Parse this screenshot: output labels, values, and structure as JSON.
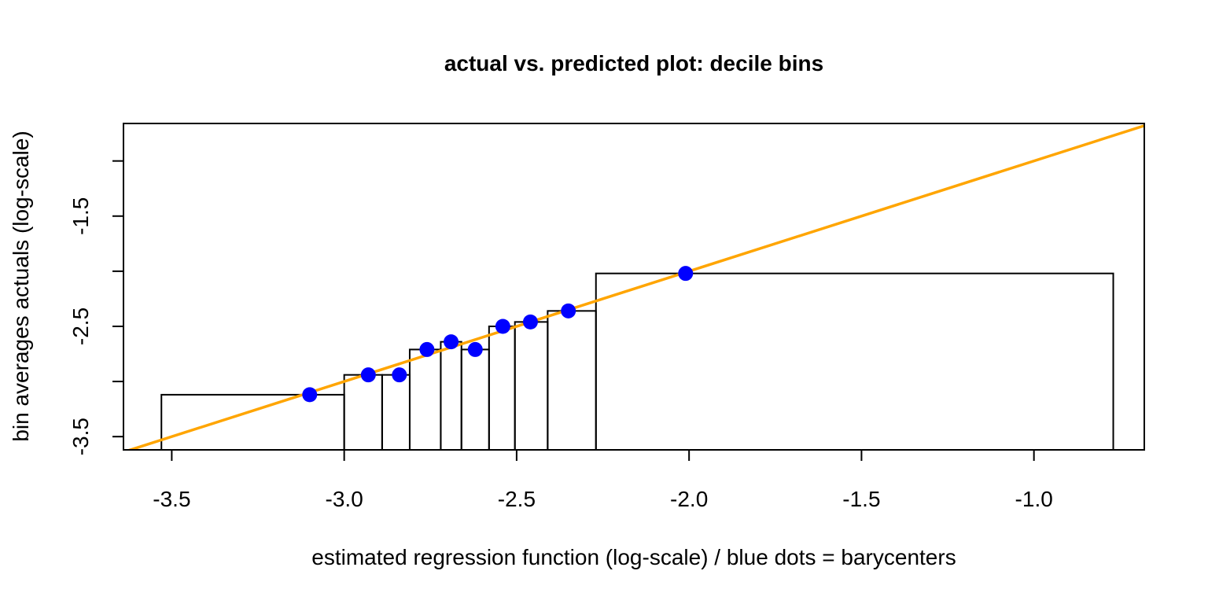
{
  "chart_data": {
    "type": "scatter",
    "title": "actual vs. predicted plot: decile bins",
    "xlabel": "estimated regression function (log-scale) / blue dots = barycenters",
    "ylabel": "bin averages actuals (log-scale)",
    "xlim": [
      -3.64,
      -0.68
    ],
    "ylim": [
      -3.62,
      -0.66
    ],
    "x_ticks": [
      -3.5,
      -3.0,
      -2.5,
      -2.0,
      -1.5,
      -1.0
    ],
    "x_tick_labels": [
      "-3.5",
      "-3.0",
      "-2.5",
      "-2.0",
      "-1.5",
      "-1.0"
    ],
    "y_ticks": [
      -3.5,
      -3.0,
      -2.5,
      -2.0,
      -1.5,
      -1.0
    ],
    "y_tick_labels": [
      "-3.5",
      "",
      "-2.5",
      "",
      "-1.5",
      ""
    ],
    "grid": false,
    "legend": "none",
    "reference_line": {
      "slope": 1,
      "intercept": 0,
      "color": "#FFA500"
    },
    "bins": [
      {
        "x_start": -3.53,
        "x_end": -3.0,
        "height": -3.12
      },
      {
        "x_start": -3.0,
        "x_end": -2.89,
        "height": -2.94
      },
      {
        "x_start": -2.89,
        "x_end": -2.81,
        "height": -2.94
      },
      {
        "x_start": -2.81,
        "x_end": -2.72,
        "height": -2.71
      },
      {
        "x_start": -2.72,
        "x_end": -2.66,
        "height": -2.64
      },
      {
        "x_start": -2.66,
        "x_end": -2.58,
        "height": -2.71
      },
      {
        "x_start": -2.58,
        "x_end": -2.505,
        "height": -2.5
      },
      {
        "x_start": -2.505,
        "x_end": -2.41,
        "height": -2.46
      },
      {
        "x_start": -2.41,
        "x_end": -2.27,
        "height": -2.36
      },
      {
        "x_start": -2.27,
        "x_end": -0.77,
        "height": -2.02
      }
    ],
    "points": [
      {
        "x": -3.1,
        "y": -3.12
      },
      {
        "x": -2.93,
        "y": -2.94
      },
      {
        "x": -2.84,
        "y": -2.94
      },
      {
        "x": -2.76,
        "y": -2.71
      },
      {
        "x": -2.69,
        "y": -2.64
      },
      {
        "x": -2.62,
        "y": -2.71
      },
      {
        "x": -2.54,
        "y": -2.5
      },
      {
        "x": -2.46,
        "y": -2.46
      },
      {
        "x": -2.35,
        "y": -2.36
      },
      {
        "x": -2.01,
        "y": -2.02
      }
    ],
    "point_color": "#0000FF",
    "bin_outline_color": "#000000"
  }
}
